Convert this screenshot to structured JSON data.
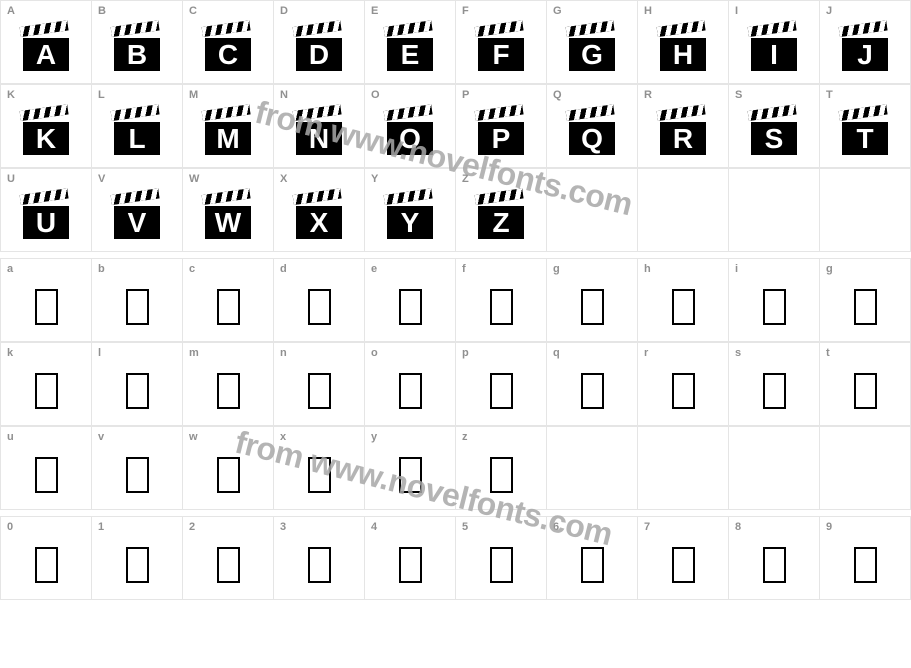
{
  "watermark_text": "from www.novelfonts.com",
  "watermark_color": "#a8a8a8",
  "border_color": "#e5e5e5",
  "key_label_color": "#909090",
  "rows": [
    {
      "type": "clapper",
      "cells": [
        "A",
        "B",
        "C",
        "D",
        "E",
        "F",
        "G",
        "H",
        "I",
        "J"
      ]
    },
    {
      "type": "clapper",
      "cells": [
        "K",
        "L",
        "M",
        "N",
        "O",
        "P",
        "Q",
        "R",
        "S",
        "T"
      ]
    },
    {
      "type": "clapper",
      "cells": [
        "U",
        "V",
        "W",
        "X",
        "Y",
        "Z",
        "",
        "",
        "",
        ""
      ]
    },
    {
      "type": "gap"
    },
    {
      "type": "empty-rect",
      "cells": [
        "a",
        "b",
        "c",
        "d",
        "e",
        "f",
        "g",
        "h",
        "i",
        "g"
      ]
    },
    {
      "type": "empty-rect",
      "cells": [
        "k",
        "l",
        "m",
        "n",
        "o",
        "p",
        "q",
        "r",
        "s",
        "t"
      ]
    },
    {
      "type": "empty-rect",
      "cells": [
        "u",
        "v",
        "w",
        "x",
        "y",
        "z",
        "",
        "",
        "",
        ""
      ]
    },
    {
      "type": "gap"
    },
    {
      "type": "empty-rect",
      "cells": [
        "0",
        "1",
        "2",
        "3",
        "4",
        "5",
        "6",
        "7",
        "8",
        "9"
      ]
    }
  ]
}
